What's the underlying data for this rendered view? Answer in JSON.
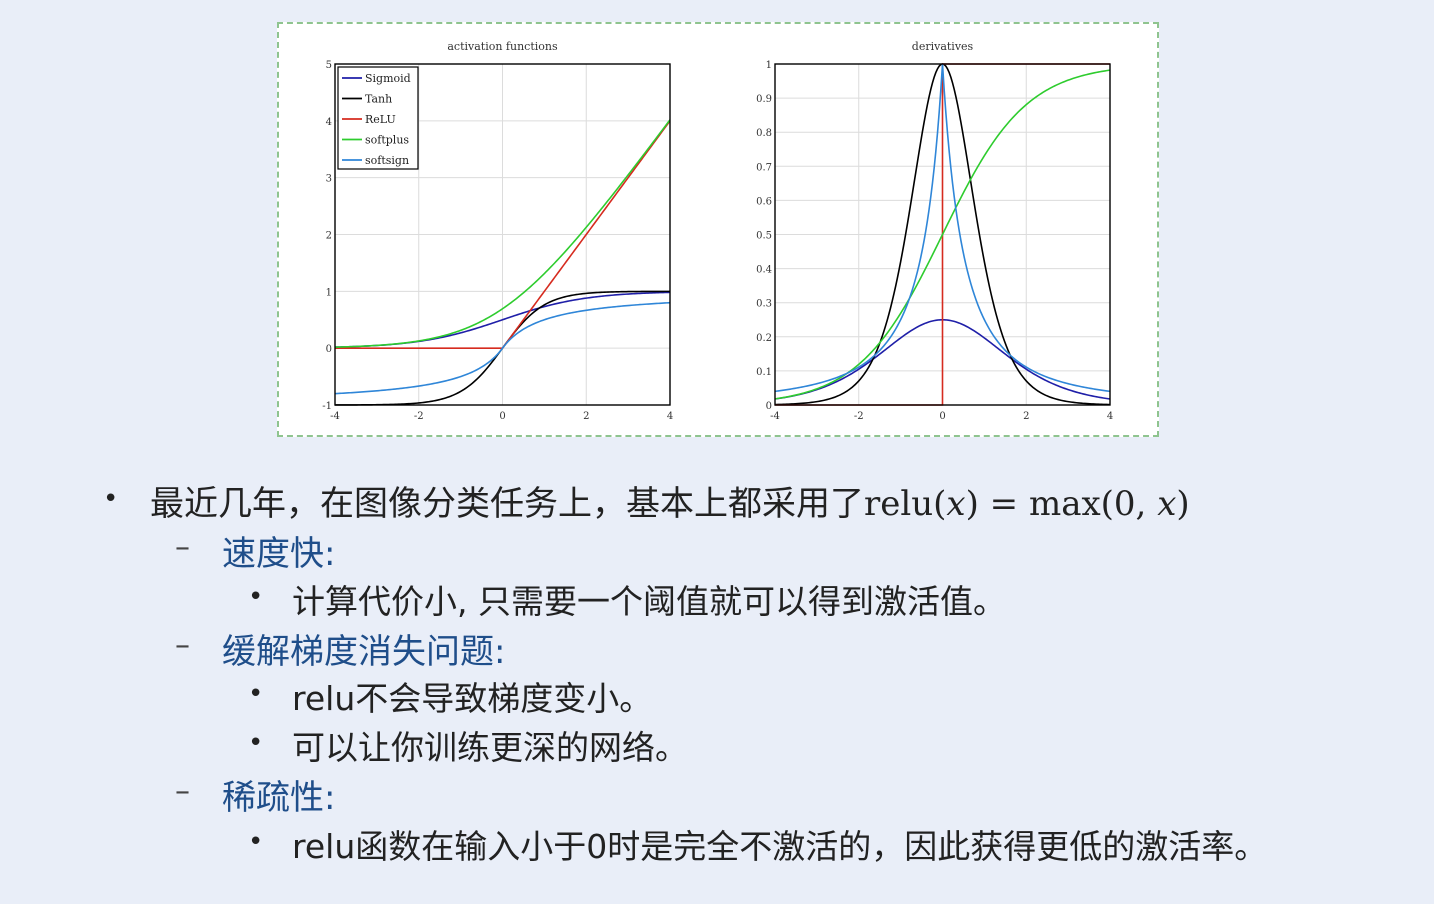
{
  "chart_data": [
    {
      "type": "line",
      "title": "activation functions",
      "xlim": [
        -4,
        4
      ],
      "ylim": [
        -1,
        5
      ],
      "xticks": [
        -4,
        -2,
        0,
        2,
        4
      ],
      "yticks": [
        -1,
        0,
        1,
        2,
        3,
        4,
        5
      ],
      "grid": true,
      "legend_position": "top-left",
      "series": [
        {
          "name": "Sigmoid",
          "color": "#1f1fa8",
          "function": "sigmoid"
        },
        {
          "name": "Tanh",
          "color": "#000000",
          "function": "tanh"
        },
        {
          "name": "ReLU",
          "color": "#d62b1f",
          "function": "relu"
        },
        {
          "name": "softplus",
          "color": "#2ecc2e",
          "function": "softplus"
        },
        {
          "name": "softsign",
          "color": "#2f86d8",
          "function": "softsign"
        }
      ]
    },
    {
      "type": "line",
      "title": "derivatives",
      "xlim": [
        -4,
        4
      ],
      "ylim": [
        0,
        1
      ],
      "xticks": [
        -4,
        -2,
        0,
        2,
        4
      ],
      "yticks": [
        0,
        0.1,
        0.2,
        0.3,
        0.4,
        0.5,
        0.6,
        0.7,
        0.8,
        0.9,
        1
      ],
      "grid": true,
      "series": [
        {
          "color": "#1f1fa8",
          "function": "d_sigmoid"
        },
        {
          "color": "#000000",
          "function": "d_tanh"
        },
        {
          "color": "#d62b1f",
          "function": "d_relu"
        },
        {
          "color": "#2ecc2e",
          "function": "d_softplus"
        },
        {
          "color": "#2f86d8",
          "function": "d_softsign"
        }
      ]
    }
  ],
  "bullets": {
    "b1_text": "最近几年，在图像分类任务上，基本上都采用了",
    "b1_math_fn": "relu(",
    "b1_math_x1": "x",
    "b1_math_mid": ") = max(0, ",
    "b1_math_x2": "x",
    "b1_math_end": ")",
    "s1": "速度快:",
    "s1_1": "计算代价小, 只需要一个阈值就可以得到激活值。",
    "s2": "缓解梯度消失问题:",
    "s2_1": "relu不会导致梯度变小。",
    "s2_2": "可以让你训练更深的网络。",
    "s3": "稀疏性:",
    "s3_1": "relu函数在输入小于0时是完全不激活的，因此获得更低的激活率。",
    "bullet_char": "•",
    "dash_char": "–"
  }
}
